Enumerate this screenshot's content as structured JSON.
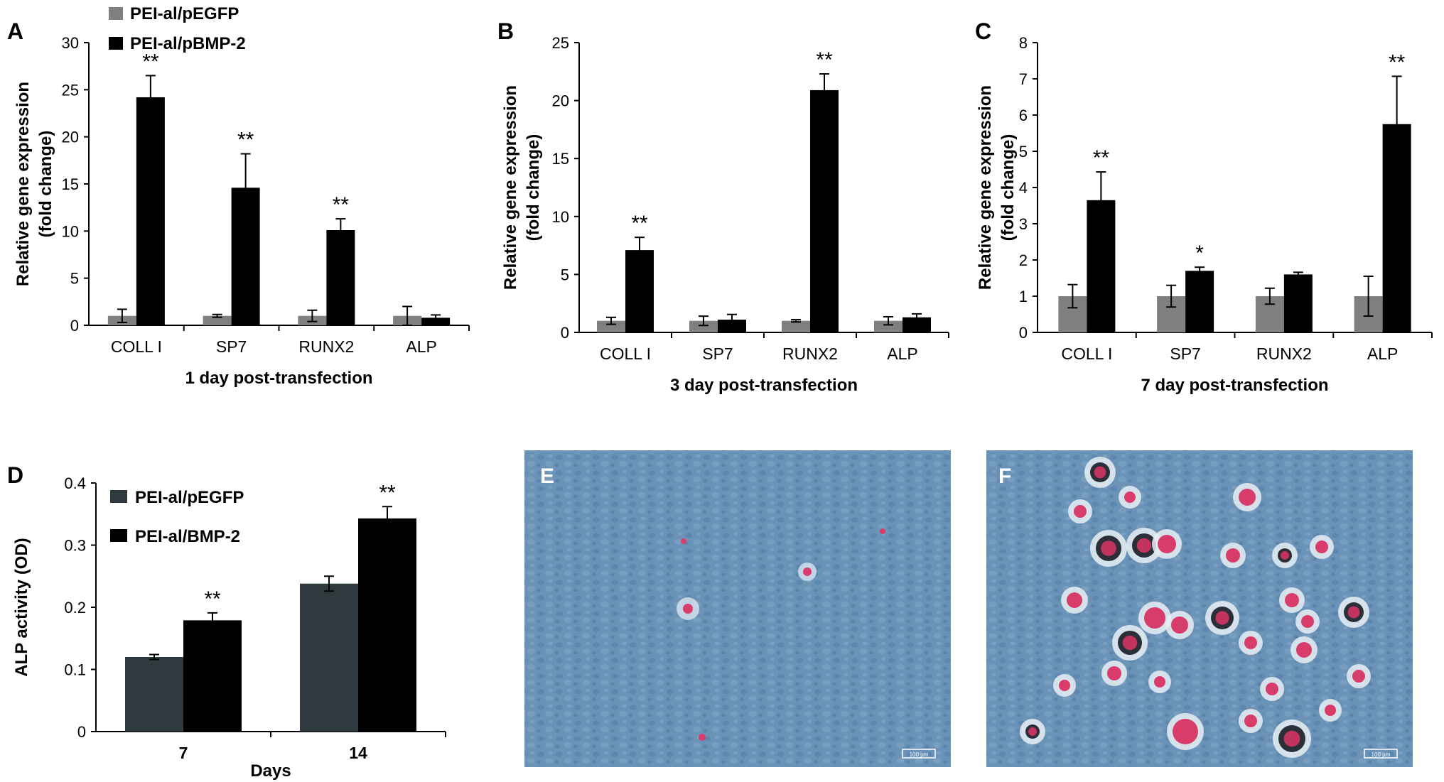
{
  "colors": {
    "gray": "#808080",
    "black": "#000000",
    "dark_slate": "#2f3a3f",
    "micro_bg": "#6b93b8",
    "stain": "#d83c6b"
  },
  "legend_top": [
    {
      "label": "PEI-al/pEGFP",
      "color": "#808080"
    },
    {
      "label": "PEI-al/pBMP-2",
      "color": "#000000"
    }
  ],
  "chart_data": [
    {
      "panel": "A",
      "type": "bar",
      "categories": [
        "COLL I",
        "SP7",
        "RUNX2",
        "ALP"
      ],
      "xlabel": "1 day post-transfection",
      "ylabel": [
        "Relative gene expression",
        "(fold change)"
      ],
      "ylim": [
        0,
        30
      ],
      "yticks": [
        0,
        5,
        10,
        15,
        20,
        25,
        30
      ],
      "series": [
        {
          "name": "PEI-al/pEGFP",
          "color": "#808080",
          "values": [
            1.0,
            1.0,
            1.0,
            1.0
          ],
          "errors": [
            0.7,
            0.15,
            0.6,
            1.0
          ]
        },
        {
          "name": "PEI-al/pBMP-2",
          "color": "#000000",
          "values": [
            24.2,
            14.6,
            10.1,
            0.8
          ],
          "errors": [
            2.3,
            3.6,
            1.2,
            0.3
          ]
        }
      ],
      "significance": [
        "**",
        "**",
        "**",
        ""
      ]
    },
    {
      "panel": "B",
      "type": "bar",
      "categories": [
        "COLL I",
        "SP7",
        "RUNX2",
        "ALP"
      ],
      "xlabel": "3 day post-transfection",
      "ylabel": [
        "Relative gene expression",
        "(fold change)"
      ],
      "ylim": [
        0,
        25
      ],
      "yticks": [
        0,
        5,
        10,
        15,
        20,
        25
      ],
      "series": [
        {
          "name": "PEI-al/pEGFP",
          "color": "#808080",
          "values": [
            1.0,
            1.0,
            1.0,
            1.0
          ],
          "errors": [
            0.3,
            0.4,
            0.1,
            0.35
          ]
        },
        {
          "name": "PEI-al/pBMP-2",
          "color": "#000000",
          "values": [
            7.1,
            1.1,
            20.9,
            1.3
          ],
          "errors": [
            1.1,
            0.45,
            1.4,
            0.3
          ]
        }
      ],
      "significance": [
        "**",
        "",
        "**",
        ""
      ]
    },
    {
      "panel": "C",
      "type": "bar",
      "categories": [
        "COLL I",
        "SP7",
        "RUNX2",
        "ALP"
      ],
      "xlabel": "7 day post-transfection",
      "ylabel": [
        "Relative gene expression",
        "(fold change)"
      ],
      "ylim": [
        0,
        8
      ],
      "yticks": [
        0,
        1,
        2,
        3,
        4,
        5,
        6,
        7,
        8
      ],
      "series": [
        {
          "name": "PEI-al/pEGFP",
          "color": "#808080",
          "values": [
            1.0,
            1.0,
            1.0,
            1.0
          ],
          "errors": [
            0.32,
            0.3,
            0.22,
            0.55
          ]
        },
        {
          "name": "PEI-al/pBMP-2",
          "color": "#000000",
          "values": [
            3.65,
            1.7,
            1.6,
            5.75
          ],
          "errors": [
            0.78,
            0.1,
            0.06,
            1.32
          ]
        }
      ],
      "significance": [
        "**",
        "*",
        "",
        "**"
      ]
    },
    {
      "panel": "D",
      "type": "bar",
      "categories": [
        "7",
        "14"
      ],
      "xlabel": "Days",
      "ylabel": [
        "ALP activity (OD)"
      ],
      "ylim": [
        0,
        0.4
      ],
      "yticks": [
        0,
        0.1,
        0.2,
        0.3,
        0.4
      ],
      "legend": [
        "PEI-al/pEGFP",
        "PEI-al/BMP-2"
      ],
      "series": [
        {
          "name": "PEI-al/pEGFP",
          "color": "#2f3a3f",
          "values": [
            0.12,
            0.238
          ],
          "errors": [
            0.004,
            0.012
          ]
        },
        {
          "name": "PEI-al/BMP-2",
          "color": "#000000",
          "values": [
            0.179,
            0.343
          ],
          "errors": [
            0.012,
            0.019
          ]
        }
      ],
      "significance": [
        "**",
        "**"
      ]
    }
  ],
  "micrographs": [
    {
      "panel": "E",
      "scale_bar": "100 μm"
    },
    {
      "panel": "F",
      "scale_bar": "100 μm"
    }
  ]
}
